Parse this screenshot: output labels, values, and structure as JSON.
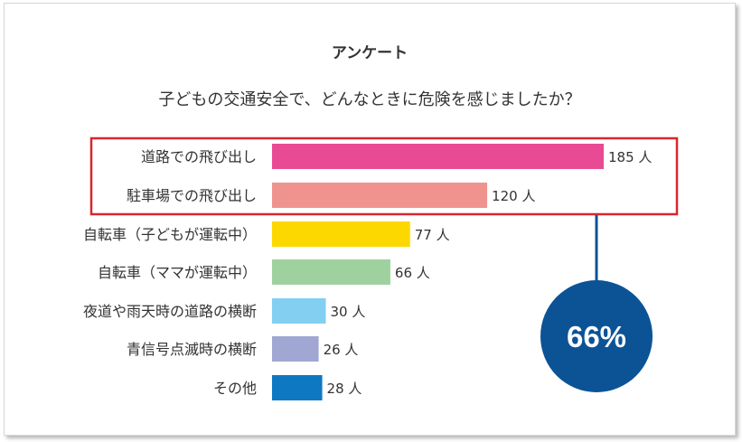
{
  "survey_label": "アンケート",
  "question": "子どもの交通安全で、どんなときに危険を感じましたか？",
  "chart_data": {
    "type": "bar",
    "orientation": "horizontal",
    "title": "子どもの交通安全で、どんなときに危険を感じましたか？",
    "categories": [
      "道路での飛び出し",
      "駐車場での飛び出し",
      "自転車（子どもが運転中）",
      "自転車（ママが運転中）",
      "夜道や雨天時の道路の横断",
      "青信号点滅時の横断",
      "その他"
    ],
    "values": [
      185,
      120,
      77,
      66,
      30,
      26,
      28
    ],
    "value_labels": [
      "185 人",
      "120 人",
      "77 人",
      "66 人",
      "30 人",
      "26 人",
      "28 人"
    ],
    "unit": "人",
    "colors": [
      "#e84b93",
      "#f0938e",
      "#fdd800",
      "#9fd19f",
      "#82cff2",
      "#9fa7d2",
      "#0e78c2"
    ],
    "highlight": {
      "categories": [
        "道路での飛び出し",
        "駐車場での飛び出し"
      ],
      "box_color": "#d9262e",
      "callout_text": "66%",
      "callout_color": "#0c5396"
    },
    "grid": false,
    "legend": "none"
  }
}
